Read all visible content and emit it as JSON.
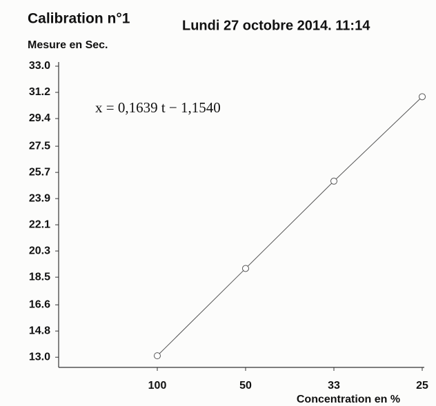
{
  "chart_data": {
    "type": "line",
    "title": "Calibration n°1",
    "subtitle": "Lundi 27 octobre 2014. 11:14",
    "y_label": "Mesure en Sec.",
    "x_label": "Concentration en %",
    "annotation": "x = 0,1639 t − 1,1540",
    "categories": [
      "100",
      "50",
      "33",
      "25"
    ],
    "values": [
      13.1,
      19.1,
      25.1,
      30.9
    ],
    "color": "#555555",
    "ylim": [
      12.3,
      33
    ],
    "yticks": [
      {
        "value": 33,
        "label": "33.0"
      },
      31.2,
      29.4,
      27.5,
      25.7,
      23.9,
      22.1,
      20.3,
      18.5,
      16.6,
      14.8,
      {
        "value": 13,
        "label": "13.0"
      }
    ],
    "grid": false
  }
}
